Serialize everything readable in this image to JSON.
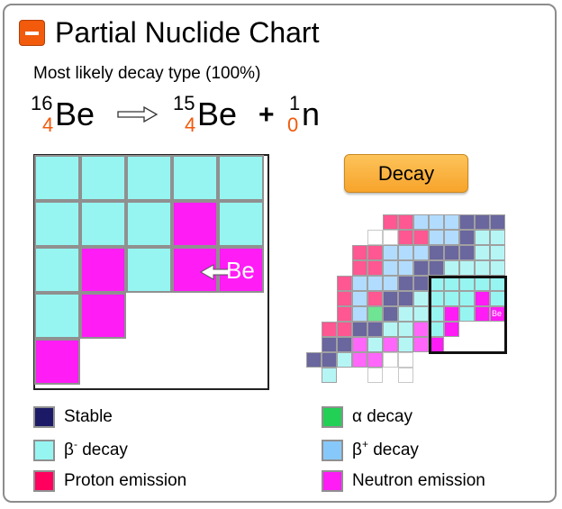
{
  "header": {
    "title": "Partial Nuclide Chart",
    "collapse_icon": "minus-icon",
    "accent_color": "#f25a0c"
  },
  "decay_info": {
    "subtitle": "Most likely decay type",
    "probability": "(100%)"
  },
  "equation": {
    "parent": {
      "mass": "16",
      "atomic": "4",
      "symbol": "Be"
    },
    "arrow_icon": "hollow-right-arrow-icon",
    "daughter": {
      "mass": "15",
      "atomic": "4",
      "symbol": "Be"
    },
    "plus": "+",
    "emitted": {
      "mass": "1",
      "atomic": "0",
      "symbol": "n"
    }
  },
  "decay_button": {
    "label": "Decay"
  },
  "zoom_chart": {
    "current_label": "Be",
    "arrow_icon": "left-arrow-icon",
    "rows": [
      [
        "beta_minus",
        "beta_minus",
        "beta_minus",
        "beta_minus",
        "beta_minus"
      ],
      [
        "beta_minus",
        "beta_minus",
        "beta_minus",
        "neutron",
        "beta_minus"
      ],
      [
        "beta_minus",
        "neutron",
        "beta_minus",
        "neutron",
        "neutron"
      ],
      [
        "beta_minus",
        "neutron",
        null,
        null,
        null
      ],
      [
        "neutron",
        null,
        null,
        null,
        null
      ]
    ]
  },
  "mini_chart": {
    "current_label": "Be",
    "highlight_box": {
      "col": 8,
      "row": 4,
      "size": 5
    },
    "cells": [
      [
        5,
        0,
        "proton"
      ],
      [
        6,
        0,
        "proton"
      ],
      [
        7,
        0,
        "beta_plus"
      ],
      [
        8,
        0,
        "beta_plus"
      ],
      [
        9,
        0,
        "beta_plus"
      ],
      [
        10,
        0,
        "stable"
      ],
      [
        11,
        0,
        "stable"
      ],
      [
        12,
        0,
        "stable"
      ],
      [
        4,
        1,
        "empty"
      ],
      [
        5,
        1,
        "empty"
      ],
      [
        6,
        1,
        "proton"
      ],
      [
        7,
        1,
        "proton"
      ],
      [
        8,
        1,
        "beta_plus"
      ],
      [
        9,
        1,
        "beta_plus"
      ],
      [
        10,
        1,
        "stable"
      ],
      [
        11,
        1,
        "beta_minus"
      ],
      [
        12,
        1,
        "beta_minus"
      ],
      [
        3,
        2,
        "proton"
      ],
      [
        4,
        2,
        "proton"
      ],
      [
        5,
        2,
        "beta_plus"
      ],
      [
        6,
        2,
        "beta_plus"
      ],
      [
        7,
        2,
        "beta_plus"
      ],
      [
        8,
        2,
        "stable"
      ],
      [
        9,
        2,
        "stable"
      ],
      [
        10,
        2,
        "stable"
      ],
      [
        11,
        2,
        "beta_minus"
      ],
      [
        12,
        2,
        "beta_minus"
      ],
      [
        3,
        3,
        "proton"
      ],
      [
        4,
        3,
        "proton"
      ],
      [
        5,
        3,
        "beta_plus"
      ],
      [
        6,
        3,
        "beta_plus"
      ],
      [
        7,
        3,
        "stable"
      ],
      [
        8,
        3,
        "stable"
      ],
      [
        9,
        3,
        "beta_minus"
      ],
      [
        10,
        3,
        "beta_minus"
      ],
      [
        11,
        3,
        "beta_minus"
      ],
      [
        12,
        3,
        "beta_minus"
      ],
      [
        2,
        4,
        "proton"
      ],
      [
        3,
        4,
        "beta_plus"
      ],
      [
        4,
        4,
        "beta_plus"
      ],
      [
        5,
        4,
        "beta_plus"
      ],
      [
        6,
        4,
        "stable"
      ],
      [
        7,
        4,
        "stable"
      ],
      [
        8,
        4,
        "beta_minus_hi"
      ],
      [
        9,
        4,
        "beta_minus_hi"
      ],
      [
        10,
        4,
        "beta_minus_hi"
      ],
      [
        11,
        4,
        "beta_minus_hi"
      ],
      [
        12,
        4,
        "beta_minus_hi"
      ],
      [
        2,
        5,
        "proton"
      ],
      [
        3,
        5,
        "beta_plus"
      ],
      [
        4,
        5,
        "proton"
      ],
      [
        5,
        5,
        "stable"
      ],
      [
        6,
        5,
        "stable"
      ],
      [
        7,
        5,
        "beta_minus"
      ],
      [
        8,
        5,
        "beta_minus_hi"
      ],
      [
        9,
        5,
        "beta_minus_hi"
      ],
      [
        10,
        5,
        "beta_minus_hi"
      ],
      [
        11,
        5,
        "neutron_hi"
      ],
      [
        12,
        5,
        "beta_minus_hi"
      ],
      [
        2,
        6,
        "proton"
      ],
      [
        3,
        6,
        "beta_plus"
      ],
      [
        4,
        6,
        "alpha"
      ],
      [
        5,
        6,
        "stable"
      ],
      [
        6,
        6,
        "beta_minus"
      ],
      [
        7,
        6,
        "beta_minus"
      ],
      [
        8,
        6,
        "beta_minus_hi"
      ],
      [
        9,
        6,
        "neutron_hi"
      ],
      [
        10,
        6,
        "beta_minus_hi"
      ],
      [
        11,
        6,
        "neutron_hi"
      ],
      [
        12,
        6,
        "neutron_hi"
      ],
      [
        1,
        7,
        "proton"
      ],
      [
        2,
        7,
        "proton"
      ],
      [
        3,
        7,
        "stable"
      ],
      [
        4,
        7,
        "stable"
      ],
      [
        5,
        7,
        "beta_minus"
      ],
      [
        6,
        7,
        "beta_minus"
      ],
      [
        7,
        7,
        "neutron"
      ],
      [
        8,
        7,
        "beta_minus_hi"
      ],
      [
        9,
        7,
        "neutron_hi"
      ],
      [
        1,
        8,
        "stable"
      ],
      [
        2,
        8,
        "stable"
      ],
      [
        3,
        8,
        "neutron"
      ],
      [
        4,
        8,
        "beta_minus"
      ],
      [
        5,
        8,
        "neutron"
      ],
      [
        6,
        8,
        "beta_minus"
      ],
      [
        7,
        8,
        "neutron"
      ],
      [
        8,
        8,
        "neutron_hi"
      ],
      [
        0,
        9,
        "stable"
      ],
      [
        1,
        9,
        "stable"
      ],
      [
        2,
        9,
        "beta_minus"
      ],
      [
        3,
        9,
        "neutron"
      ],
      [
        4,
        9,
        "neutron"
      ],
      [
        5,
        9,
        "empty"
      ],
      [
        6,
        9,
        "empty"
      ],
      [
        1,
        10,
        "beta_minus"
      ],
      [
        4,
        10,
        "empty"
      ],
      [
        6,
        10,
        "empty"
      ]
    ]
  },
  "colors": {
    "stable": "#1c1a66",
    "beta_minus": "#96f5f1",
    "proton": "#ff005f",
    "alpha": "#22d055",
    "beta_plus": "#87c8fb",
    "neutron": "#ff1cf5",
    "mini_stable": "#6a669e",
    "mini_beta_minus": "#b5f6f5",
    "mini_beta_minus_hi": "#96f5f1",
    "mini_proton": "#ff5791",
    "mini_alpha": "#6fe492",
    "mini_beta_plus": "#b2dcfd",
    "mini_neutron": "#ff66f9",
    "mini_neutron_hi": "#ff1cf5"
  },
  "legend": [
    {
      "key": "stable",
      "label": "Stable"
    },
    {
      "key": "beta_minus",
      "label": "β",
      "sup": "-",
      "suffix": " decay"
    },
    {
      "key": "proton",
      "label": "Proton emission"
    },
    {
      "key": "alpha",
      "label": "α decay"
    },
    {
      "key": "beta_plus",
      "label": "β",
      "sup": "+",
      "suffix": " decay"
    },
    {
      "key": "neutron",
      "label": "Neutron emission"
    }
  ]
}
